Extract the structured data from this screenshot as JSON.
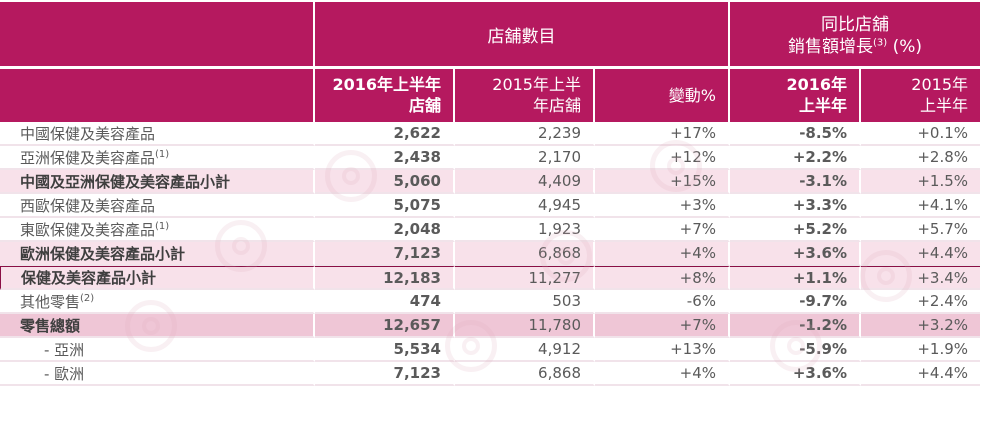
{
  "header": {
    "store_count_group": "店舖數目",
    "growth_group_line1": "同比店舖",
    "growth_group_line2": "銷售額增長",
    "growth_group_sup": "(3)",
    "growth_group_unit": " (%)",
    "col_2016h1_line1": "2016年上半年",
    "col_2016h1_line2": "店舖",
    "col_2015h1_line1": "2015年上半",
    "col_2015h1_line2": "年店舖",
    "col_change": "變動%",
    "col_growth2016_line1": "2016年",
    "col_growth2016_line2": "上半年",
    "col_growth2015_line1": "2015年",
    "col_growth2015_line2": "上半年"
  },
  "rows": [
    {
      "label": "中國保健及美容產品",
      "sup": "",
      "v2016": "2,622",
      "v2015": "2,239",
      "change": "+17%",
      "g2016": "-8.5%",
      "g2015": "+0.1%"
    },
    {
      "label": "亞洲保健及美容產品",
      "sup": "(1)",
      "v2016": "2,438",
      "v2015": "2,170",
      "change": "+12%",
      "g2016": "+2.2%",
      "g2015": "+2.8%"
    },
    {
      "label": "中國及亞洲保健及美容產品小計",
      "sup": "",
      "v2016": "5,060",
      "v2015": "4,409",
      "change": "+15%",
      "g2016": "-3.1%",
      "g2015": "+1.5%"
    },
    {
      "label": "西歐保健及美容產品",
      "sup": "",
      "v2016": "5,075",
      "v2015": "4,945",
      "change": "+3%",
      "g2016": "+3.3%",
      "g2015": "+4.1%"
    },
    {
      "label": "東歐保健及美容產品",
      "sup": "(1)",
      "v2016": "2,048",
      "v2015": "1,923",
      "change": "+7%",
      "g2016": "+5.2%",
      "g2015": "+5.7%"
    },
    {
      "label": "歐洲保健及美容產品小計",
      "sup": "",
      "v2016": "7,123",
      "v2015": "6,868",
      "change": "+4%",
      "g2016": "+3.6%",
      "g2015": "+4.4%"
    },
    {
      "label": "保健及美容產品小計",
      "sup": "",
      "v2016": "12,183",
      "v2015": "11,277",
      "change": "+8%",
      "g2016": "+1.1%",
      "g2015": "+3.4%"
    },
    {
      "label": "其他零售",
      "sup": "(2)",
      "v2016": "474",
      "v2015": "503",
      "change": "-6%",
      "g2016": "-9.7%",
      "g2015": "+2.4%"
    },
    {
      "label": "零售總額",
      "sup": "",
      "v2016": "12,657",
      "v2015": "11,780",
      "change": "+7%",
      "g2016": "-1.2%",
      "g2015": "+3.2%"
    },
    {
      "label": "- 亞洲",
      "sup": "",
      "v2016": "5,534",
      "v2015": "4,912",
      "change": "+13%",
      "g2016": "-5.9%",
      "g2015": "+1.9%"
    },
    {
      "label": "- 歐洲",
      "sup": "",
      "v2016": "7,123",
      "v2015": "6,868",
      "change": "+4%",
      "g2016": "+3.6%",
      "g2015": "+4.4%"
    }
  ]
}
